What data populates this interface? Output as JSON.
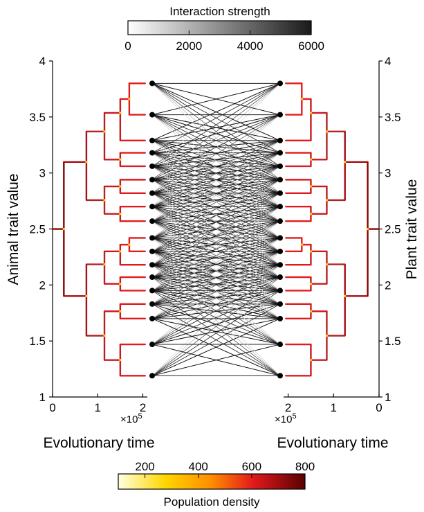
{
  "chart_data": {
    "type": "network-phylogeny",
    "interaction_colorbar": {
      "title": "Interaction strength",
      "ticks": [
        "0",
        "2000",
        "4000",
        "6000"
      ],
      "range": [
        0,
        6000
      ],
      "colors": [
        "#ffffff",
        "#1a1a1a"
      ]
    },
    "density_colorbar": {
      "title": "Population density",
      "ticks": [
        "200",
        "400",
        "600",
        "800"
      ],
      "range": [
        100,
        800
      ],
      "colors": [
        "#ffffe0",
        "#ffd700",
        "#ff8c00",
        "#e31a1c",
        "#5a0000"
      ]
    },
    "left_axis": {
      "label": "Animal trait value",
      "ticks": [
        "1",
        "1.5",
        "2",
        "2.5",
        "3",
        "3.5",
        "4"
      ],
      "range": [
        1,
        4
      ]
    },
    "right_axis": {
      "label": "Plant trait value",
      "ticks": [
        "1",
        "1.5",
        "2",
        "2.5",
        "3",
        "3.5",
        "4"
      ],
      "range": [
        1,
        4
      ]
    },
    "left_time_axis": {
      "label": "Evolutionary time",
      "ticks": [
        "0",
        "1",
        "2"
      ],
      "multiplier": "×10",
      "exponent": "5",
      "range": [
        0,
        2.1
      ]
    },
    "right_time_axis": {
      "label": "Evolutionary time",
      "ticks": [
        "2",
        "1",
        "0"
      ],
      "multiplier": "×10",
      "exponent": "5",
      "range": [
        0,
        2.1
      ]
    },
    "animal_traits": [
      1.19,
      1.47,
      1.7,
      1.83,
      1.95,
      2.07,
      2.18,
      2.3,
      2.42,
      2.57,
      2.7,
      2.82,
      2.94,
      3.06,
      3.18,
      3.29,
      3.52,
      3.8
    ],
    "plant_traits": [
      1.19,
      1.47,
      1.7,
      1.83,
      1.95,
      2.07,
      2.18,
      2.3,
      2.42,
      2.57,
      2.7,
      2.82,
      2.94,
      3.06,
      3.18,
      3.29,
      3.52,
      3.8
    ]
  }
}
